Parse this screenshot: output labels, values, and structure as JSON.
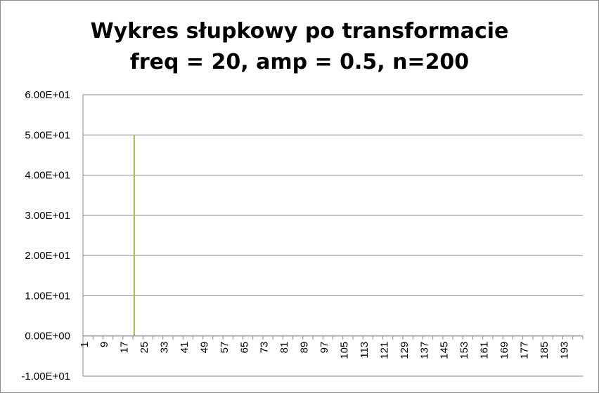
{
  "chart_data": {
    "type": "bar",
    "title": "Wykres słupkowy po transformacie",
    "subtitle": "freq = 20, amp = 0.5, n=200",
    "xlabel": "",
    "ylabel": "",
    "n": 200,
    "x_tick_labels": [
      "1",
      "9",
      "17",
      "25",
      "33",
      "41",
      "49",
      "57",
      "65",
      "73",
      "81",
      "89",
      "97",
      "105",
      "113",
      "121",
      "129",
      "137",
      "145",
      "153",
      "161",
      "169",
      "177",
      "185",
      "193"
    ],
    "y_tick_labels": [
      "6.00E+01",
      "5.00E+01",
      "4.00E+01",
      "3.00E+01",
      "2.00E+01",
      "1.00E+01",
      "0.00E+00",
      "-1.00E+01"
    ],
    "ylim": [
      -10,
      60
    ],
    "grid": true,
    "legend": "none",
    "series": [
      {
        "values_nonzero": [
          {
            "x": 21,
            "y": 50
          }
        ],
        "other_values": 0
      }
    ],
    "colors": {
      "bar": "#9bbb59",
      "grid": "#868686",
      "axis": "#868686",
      "text": "#000000"
    }
  }
}
